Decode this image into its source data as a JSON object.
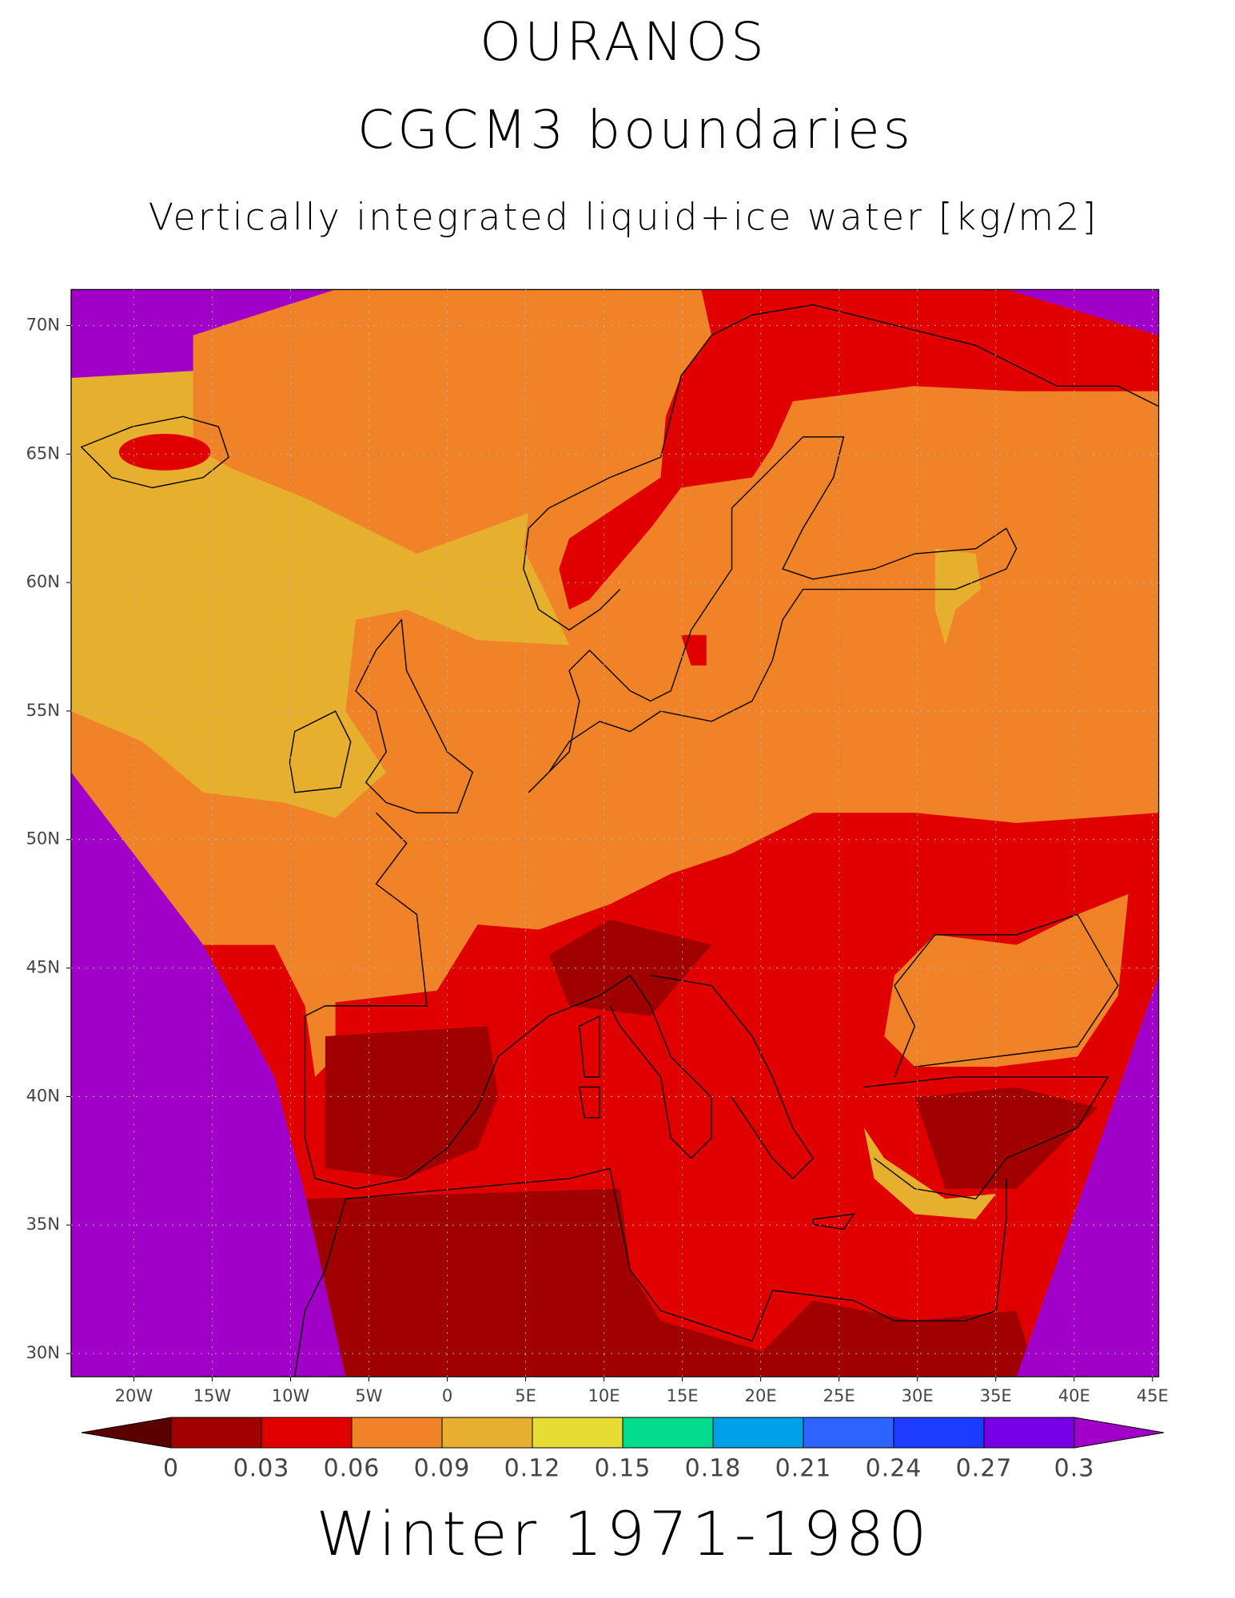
{
  "title": [
    "OURANOS",
    "CGCM3 boundaries",
    "Vertically integrated liquid+ice water [kg/m2]"
  ],
  "map": {
    "xlim": [
      -24,
      45.4
    ],
    "ylim": [
      29.1,
      71.4
    ],
    "grid": true,
    "xticks": [
      {
        "value": -20,
        "label": "20W"
      },
      {
        "value": -15,
        "label": "15W"
      },
      {
        "value": -10,
        "label": "10W"
      },
      {
        "value": -5,
        "label": "5W"
      },
      0,
      {
        "value": 5,
        "label": "5E"
      },
      {
        "value": 10,
        "label": "10E"
      },
      {
        "value": 15,
        "label": "15E"
      },
      {
        "value": 20,
        "label": "20E"
      },
      {
        "value": 25,
        "label": "25E"
      },
      {
        "value": 30,
        "label": "30E"
      },
      {
        "value": 35,
        "label": "35E"
      },
      {
        "value": 40,
        "label": "40E"
      },
      {
        "value": 45,
        "label": "45E"
      }
    ],
    "yticks": [
      {
        "value": 30,
        "label": "30N"
      },
      {
        "value": 35,
        "label": "35N"
      },
      {
        "value": 40,
        "label": "40N"
      },
      {
        "value": 45,
        "label": "45N"
      },
      {
        "value": 50,
        "label": "50N"
      },
      {
        "value": 55,
        "label": "55N"
      },
      {
        "value": 60,
        "label": "60N"
      },
      {
        "value": 65,
        "label": "65N"
      },
      {
        "value": 70,
        "label": "70N"
      }
    ]
  },
  "colorbar": {
    "levels": [
      0,
      0.03,
      0.06,
      0.09,
      0.12,
      0.15,
      0.18,
      0.21,
      0.24,
      0.27,
      0.3
    ],
    "colors": [
      "#5a0000",
      "#a00000",
      "#e00000",
      "#f08228",
      "#e6af2d",
      "#e6dc32",
      "#00dc8c",
      "#00a0e6",
      "#2d64ff",
      "#1e3cff",
      "#7800e6",
      "#a000c8"
    ]
  },
  "caption": "Winter 1971-1980"
}
